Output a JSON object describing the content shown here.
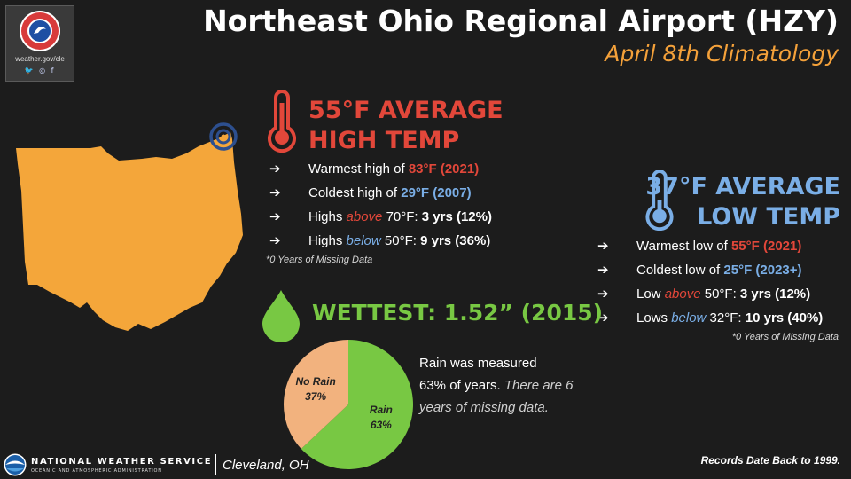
{
  "logo": {
    "site": "weather.gov/cle",
    "social": "🐦 ◎ f"
  },
  "title": "Northeast Ohio Regional Airport (HZY)",
  "subtitle": "April 8th Climatology",
  "high": {
    "heading_line1": "55°F AVERAGE",
    "heading_line2": "HIGH TEMP",
    "items": [
      {
        "arrow": "➔",
        "pre": "Warmest high of ",
        "em": "",
        "mid": "",
        "value": "83°F (2021)"
      },
      {
        "arrow": "➔",
        "pre": "Coldest high of ",
        "em": "",
        "mid": "",
        "value": "29°F (2007)"
      },
      {
        "arrow": "➔",
        "pre": "Highs ",
        "em": "above",
        "mid": " 70°F: ",
        "value": "3 yrs (12%)"
      },
      {
        "arrow": "➔",
        "pre": "Highs ",
        "em": "below",
        "mid": " 50°F: ",
        "value": "9 yrs (36%)"
      }
    ],
    "note": "*0 Years of Missing Data"
  },
  "low": {
    "heading_line1": "37°F AVERAGE",
    "heading_line2": "LOW TEMP",
    "items": [
      {
        "arrow": "➔",
        "pre": "Warmest low of ",
        "em": "",
        "mid": "",
        "value": "55°F (2021)"
      },
      {
        "arrow": "➔",
        "pre": "Coldest low of ",
        "em": "",
        "mid": "",
        "value": "25°F (2023+)"
      },
      {
        "arrow": "➔",
        "pre": "Low ",
        "em": "above",
        "mid": " 50°F: ",
        "value": "3 yrs (12%)"
      },
      {
        "arrow": "➔",
        "pre": "Lows ",
        "em": "below",
        "mid": " 32°F: ",
        "value": "10 yrs (40%)"
      }
    ],
    "note": "*0 Years of Missing Data"
  },
  "wettest": {
    "heading": "WETTEST: 1.52” (2015)"
  },
  "chart_data": {
    "type": "pie",
    "labels": [
      "Rain",
      "No Rain"
    ],
    "values": [
      63,
      37
    ],
    "value_labels": [
      "63%",
      "37%"
    ],
    "colors": [
      "#78c843",
      "#f2b27e"
    ]
  },
  "rain_text": {
    "line1": "Rain was measured",
    "line2": "63% of years.",
    "italic": "There are 6 years of missing data."
  },
  "footer": {
    "org": "NATIONAL WEATHER SERVICE",
    "org_sub": "OCEANIC AND ATMOSPHERIC ADMINISTRATION",
    "office": "Cleveland, OH",
    "records": "Records Date Back to 1999."
  },
  "colors": {
    "background": "#1c1c1c",
    "high": "#e2473a",
    "low": "#7aaee6",
    "wet": "#78c843",
    "accent": "#f4a13a",
    "ohio": "#f4a63a"
  }
}
